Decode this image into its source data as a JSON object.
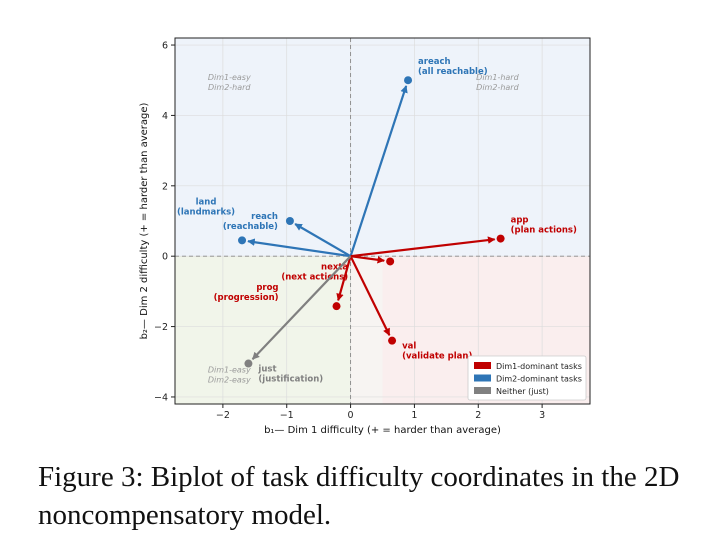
{
  "figure": {
    "caption": "Figure 3: Biplot of task difficulty coordinates in the 2D noncompensatory model."
  },
  "chart_data": {
    "type": "scatter",
    "subtype": "biplot",
    "xlabel": "b₁— Dim 1 difficulty  (+ = harder than average)",
    "ylabel": "b₂— Dim 2 difficulty  (+ = harder than average)",
    "xlim": [
      -2.75,
      3.75
    ],
    "ylim": [
      -4.2,
      6.2
    ],
    "x_ticks": [
      -2,
      -1,
      0,
      1,
      2,
      3
    ],
    "y_ticks": [
      -4,
      -2,
      0,
      2,
      4,
      6
    ],
    "grid": true,
    "legend_position": "bottom-right",
    "quadrant_labels": [
      {
        "lines": [
          "Dim1-easy",
          "Dim2-hard"
        ],
        "x": -1.9,
        "y": 5.0
      },
      {
        "lines": [
          "Dim1-hard",
          "Dim2-hard"
        ],
        "x": 2.3,
        "y": 5.0
      },
      {
        "lines": [
          "Dim1-easy",
          "Dim2-easy"
        ],
        "x": -1.9,
        "y": -3.3
      }
    ],
    "groups": [
      {
        "name": "Dim1-dominant tasks",
        "color": "#c00000"
      },
      {
        "name": "Dim2-dominant tasks",
        "color": "#2e75b6"
      },
      {
        "name": "Neither (just)",
        "color": "#808080"
      }
    ],
    "points": [
      {
        "name": "areach",
        "full": "(all reachable)",
        "x": 0.9,
        "y": 5.0,
        "group": 1,
        "label_pos": "upper-right"
      },
      {
        "name": "app",
        "full": "(plan actions)",
        "x": 2.35,
        "y": 0.5,
        "group": 0,
        "label_pos": "upper-right"
      },
      {
        "name": "land",
        "full": "(landmarks)",
        "x": -1.7,
        "y": 0.45,
        "group": 1,
        "label_pos": "upper-left"
      },
      {
        "name": "reach",
        "full": "(reachable)",
        "x": -0.95,
        "y": 1.0,
        "group": 1,
        "label_pos": "left"
      },
      {
        "name": "nexta",
        "full": "(next actions)",
        "x": 0.62,
        "y": -0.15,
        "group": 0,
        "label_pos": "lower-left"
      },
      {
        "name": "prog",
        "full": "(progression)",
        "x": -0.22,
        "y": -1.42,
        "group": 0,
        "label_pos": "upper-left"
      },
      {
        "name": "val",
        "full": "(validate plan)",
        "x": 0.65,
        "y": -2.4,
        "group": 0,
        "label_pos": "lower-right"
      },
      {
        "name": "just",
        "full": "(justification)",
        "x": -1.6,
        "y": -3.05,
        "group": 2,
        "label_pos": "lower-right"
      }
    ]
  }
}
